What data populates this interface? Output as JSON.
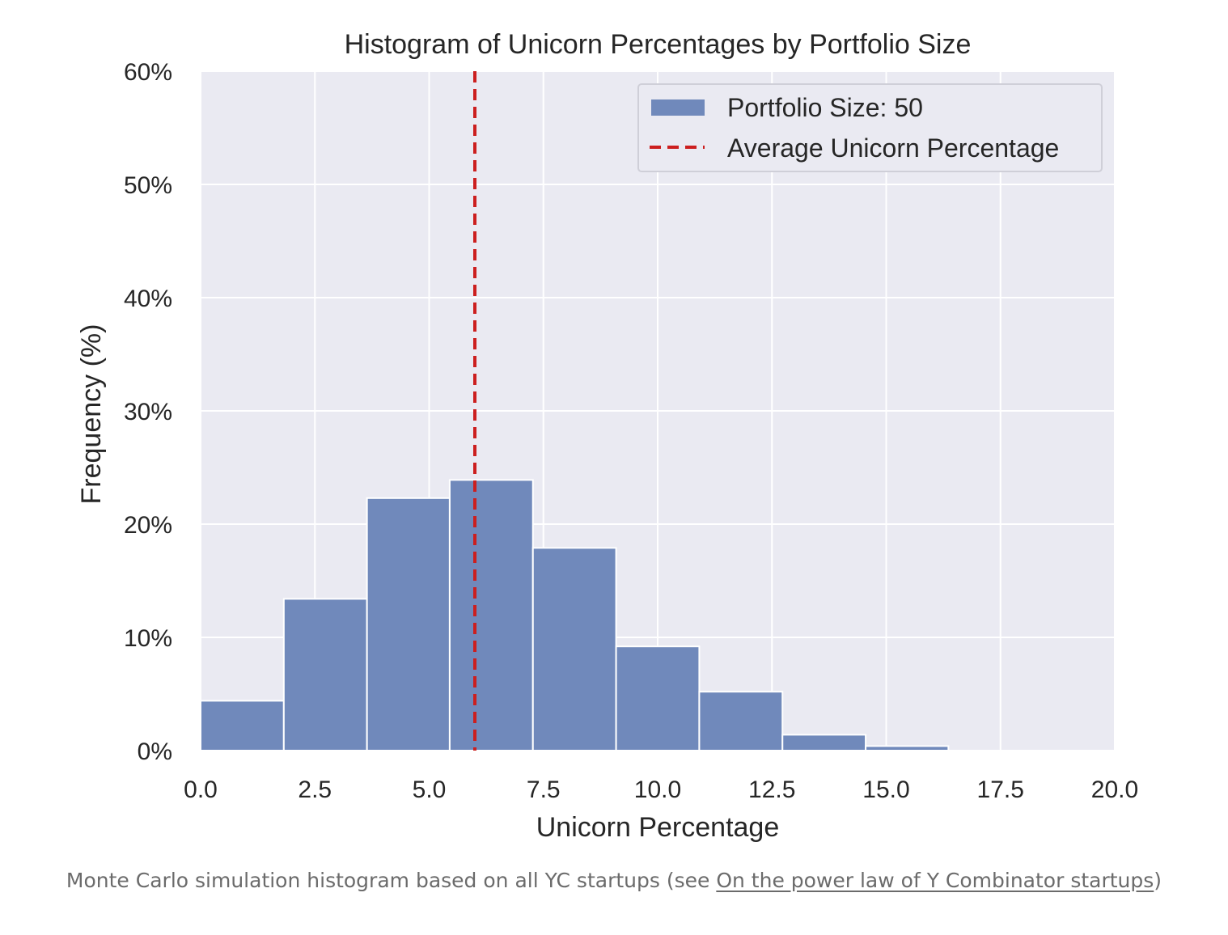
{
  "chart_data": {
    "type": "bar",
    "title": "Histogram of Unicorn Percentages by Portfolio Size",
    "xlabel": "Unicorn Percentage",
    "ylabel": "Frequency (%)",
    "xlim": [
      0.0,
      20.0
    ],
    "ylim": [
      0,
      60
    ],
    "x_ticks": [
      "0.0",
      "2.5",
      "5.0",
      "7.5",
      "10.0",
      "12.5",
      "15.0",
      "17.5",
      "20.0"
    ],
    "y_ticks": [
      "0%",
      "10%",
      "20%",
      "30%",
      "40%",
      "50%",
      "60%"
    ],
    "grid": true,
    "legend_position": "top-right",
    "series": [
      {
        "name": "Portfolio Size: 50",
        "color": "#7089bb",
        "bin_edges": [
          0.0,
          1.82,
          3.64,
          5.45,
          7.27,
          9.09,
          10.91,
          12.73,
          14.55,
          16.36,
          18.18,
          20.0
        ],
        "values": [
          4.4,
          13.4,
          22.3,
          23.9,
          17.9,
          9.2,
          5.2,
          1.4,
          0.4,
          0.0,
          0.0
        ]
      }
    ],
    "reference_line": {
      "name": "Average Unicorn Percentage",
      "x": 6.0,
      "color": "#cc1f1f",
      "style": "dashed"
    }
  },
  "caption": {
    "text_before": "Monte Carlo simulation histogram based on all YC startups (see ",
    "link_text": "On the power law of Y Combinator startups",
    "text_after": ")"
  }
}
